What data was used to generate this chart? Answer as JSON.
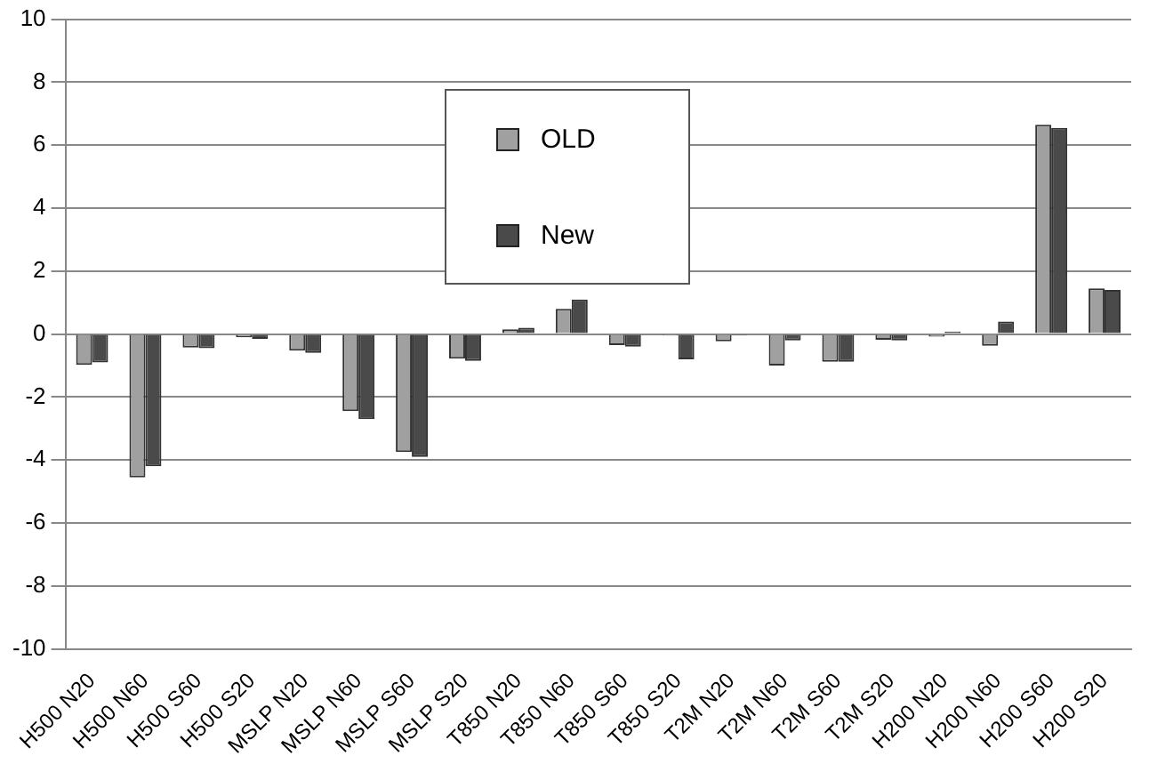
{
  "chart_data": {
    "type": "bar",
    "categories": [
      "H500 N20",
      "H500 N60",
      "H500 S60",
      "H500 S20",
      "MSLP N20",
      "MSLP N60",
      "MSLP S60",
      "MSLP S20",
      "T850 N20",
      "T850 N60",
      "T850 S60",
      "T850 S20",
      "T2M N20",
      "T2M N60",
      "T2M S60",
      "T2M S20",
      "H200 N20",
      "H200 N60",
      "H200 S60",
      "H200 S20"
    ],
    "series": [
      {
        "name": "OLD",
        "color": "#a0a0a0",
        "values": [
          -0.98,
          -4.55,
          -0.43,
          -0.1,
          -0.53,
          -2.45,
          -3.75,
          -0.78,
          0.15,
          0.8,
          -0.35,
          -0.05,
          -0.23,
          -1.0,
          -0.88,
          -0.18,
          -0.08,
          -0.37,
          6.65,
          1.45
        ]
      },
      {
        "name": "New",
        "color": "#4a4a4a",
        "values": [
          -0.9,
          -4.2,
          -0.45,
          -0.15,
          -0.6,
          -2.7,
          -3.9,
          -0.85,
          0.2,
          1.1,
          -0.4,
          -0.8,
          -0.05,
          -0.2,
          -0.88,
          -0.2,
          0.08,
          0.4,
          6.55,
          1.4
        ]
      }
    ],
    "ylim": [
      -10,
      10
    ],
    "yticks": [
      -10,
      -8,
      -6,
      -4,
      -2,
      0,
      2,
      4,
      6,
      8,
      10
    ],
    "grid": "y",
    "legend": "top"
  }
}
